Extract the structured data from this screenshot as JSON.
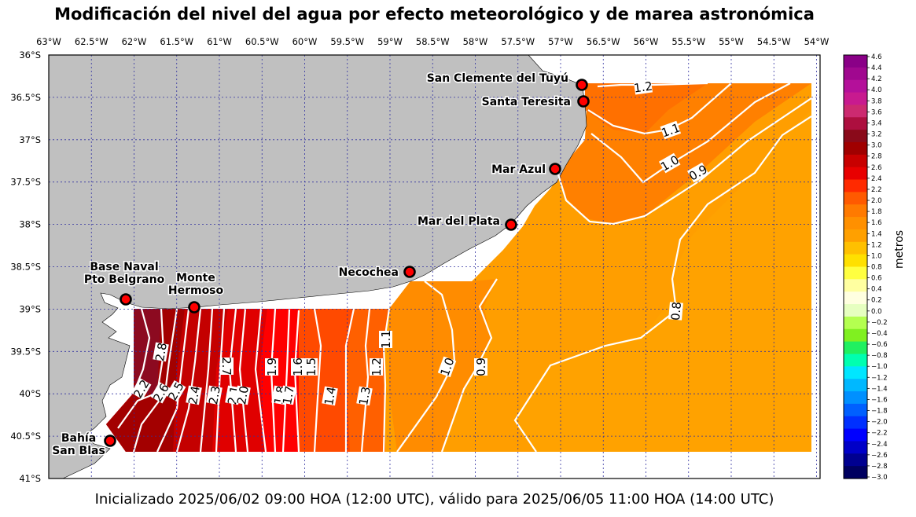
{
  "title": "Modificación del nivel del agua por efecto meteorológico y de marea astronómica",
  "footer": "Inicializado 2025/06/02 09:00 HOA (12:00 UTC), válido para 2025/06/05 11:00 HOA (14:00 UTC)",
  "colorbar": {
    "label": "metros",
    "ticks": [
      "4.6",
      "4.4",
      "4.2",
      "4.0",
      "3.8",
      "3.6",
      "3.4",
      "3.2",
      "3.0",
      "2.8",
      "2.6",
      "2.4",
      "2.2",
      "2.0",
      "1.8",
      "1.6",
      "1.4",
      "1.2",
      "1.0",
      "0.8",
      "0.6",
      "0.4",
      "0.2",
      "0.0",
      "−0.2",
      "−0.4",
      "−0.6",
      "−0.8",
      "−1.0",
      "−1.2",
      "−1.4",
      "−1.6",
      "−1.8",
      "−2.0",
      "−2.2",
      "−2.4",
      "−2.6",
      "−2.8",
      "−3.0"
    ],
    "colors": [
      "#8a0087",
      "#a0088f",
      "#b4109a",
      "#c81a8f",
      "#cc2a70",
      "#ad0f3f",
      "#8a0a1a",
      "#a00000",
      "#c80000",
      "#e80000",
      "#ff2a00",
      "#ff5a00",
      "#ff7a00",
      "#ff9000",
      "#ffa000",
      "#ffc000",
      "#ffe000",
      "#ffff40",
      "#ffffa0",
      "#ffffe0",
      "#e6ffc0",
      "#b4ff50",
      "#80f020",
      "#20f060",
      "#00ffb0",
      "#00e6ff",
      "#00b8ff",
      "#0090ff",
      "#0060ff",
      "#0030ff",
      "#0000ff",
      "#0000c8",
      "#000090",
      "#000060"
    ]
  },
  "lon_ticks": [
    "63°W",
    "62.5°W",
    "62°W",
    "61.5°W",
    "61°W",
    "60.5°W",
    "60°W",
    "59.5°W",
    "59°W",
    "58.5°W",
    "58°W",
    "57.5°W",
    "57°W",
    "56.5°W",
    "56°W",
    "55.5°W",
    "55°W",
    "54.5°W",
    "54°W"
  ],
  "lat_ticks": [
    "36°S",
    "36.5°S",
    "37°S",
    "37.5°S",
    "38°S",
    "38.5°S",
    "39°S",
    "39.5°S",
    "40°S",
    "40.5°S",
    "41°S"
  ],
  "stations": [
    {
      "name": "San Clemente del Tuyú",
      "lon": -56.7,
      "lat": -36.35
    },
    {
      "name": "Santa Teresita",
      "lon": -56.68,
      "lat": -36.55
    },
    {
      "name": "Mar Azul",
      "lon": -57.0,
      "lat": -37.35
    },
    {
      "name": "Mar del Plata",
      "lon": -57.55,
      "lat": -38.0
    },
    {
      "name": "Necochea",
      "lon": -58.74,
      "lat": -38.56
    },
    {
      "name": "Base Naval\nPto Belgrano",
      "lon": -62.1,
      "lat": -38.88
    },
    {
      "name": "Monte\nHermoso",
      "lon": -61.2,
      "lat": -38.99
    },
    {
      "name": "Bahía\nSan Blas",
      "lon": -62.28,
      "lat": -40.56
    }
  ],
  "contour_labels": [
    "1.2",
    "1.1",
    "1.0",
    "0.9",
    "0.8",
    "2.8",
    "2.7",
    "2.6",
    "2.5",
    "2.4",
    "2.3",
    "2.2",
    "2.1",
    "2.0",
    "1.9",
    "1.8",
    "1.7",
    "1.6",
    "1.5",
    "1.4",
    "1.3",
    "1.2",
    "1.1",
    "1.0",
    "0.9"
  ]
}
